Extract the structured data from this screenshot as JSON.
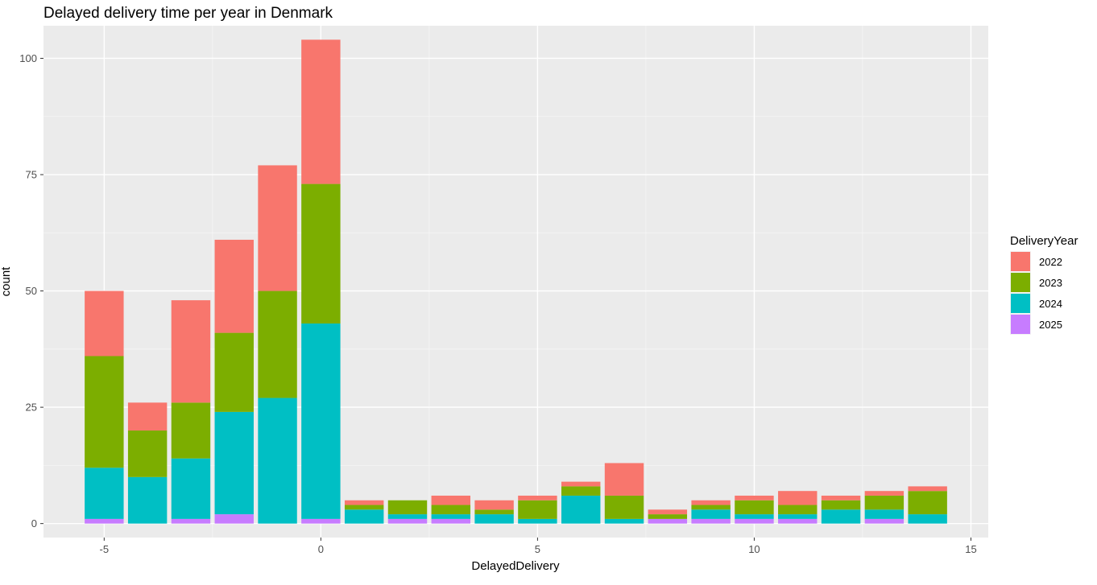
{
  "chart_data": {
    "type": "bar",
    "stacked": true,
    "title": "Delayed delivery time per year in Denmark",
    "xlabel": "DelayedDelivery",
    "ylabel": "count",
    "xlim": [
      -6.4,
      15.4
    ],
    "ylim": [
      -3,
      107
    ],
    "x_ticks": [
      -5,
      0,
      5,
      10,
      15
    ],
    "y_ticks": [
      0,
      25,
      50,
      75,
      100
    ],
    "x_tick_labels": [
      "-5",
      "0",
      "5",
      "10",
      "15"
    ],
    "y_tick_labels": [
      "0",
      "25",
      "50",
      "75",
      "100"
    ],
    "grid": true,
    "legend": {
      "title": "DeliveryYear",
      "position": "right"
    },
    "x": [
      -5,
      -4,
      -3,
      -2,
      -1,
      0,
      1,
      2,
      3,
      4,
      5,
      6,
      7,
      8,
      9,
      10,
      11,
      12,
      13,
      14
    ],
    "series": [
      {
        "name": "2025",
        "color": "#C77CFF",
        "values": [
          1,
          0,
          1,
          2,
          0,
          1,
          0,
          1,
          1,
          0,
          0,
          0,
          0,
          1,
          1,
          1,
          1,
          0,
          1,
          0
        ]
      },
      {
        "name": "2024",
        "color": "#00BFC4",
        "values": [
          11,
          10,
          13,
          22,
          27,
          42,
          3,
          1,
          1,
          2,
          1,
          6,
          1,
          0,
          2,
          1,
          1,
          3,
          2,
          2
        ]
      },
      {
        "name": "2023",
        "color": "#7CAE00",
        "values": [
          24,
          10,
          12,
          17,
          23,
          30,
          1,
          3,
          2,
          1,
          4,
          2,
          5,
          1,
          1,
          3,
          2,
          2,
          3,
          5
        ]
      },
      {
        "name": "2022",
        "color": "#F8766D",
        "values": [
          14,
          6,
          22,
          20,
          27,
          31,
          1,
          0,
          2,
          2,
          1,
          1,
          7,
          1,
          1,
          1,
          3,
          1,
          1,
          1
        ]
      }
    ],
    "legend_order": [
      "2022",
      "2023",
      "2024",
      "2025"
    ]
  }
}
